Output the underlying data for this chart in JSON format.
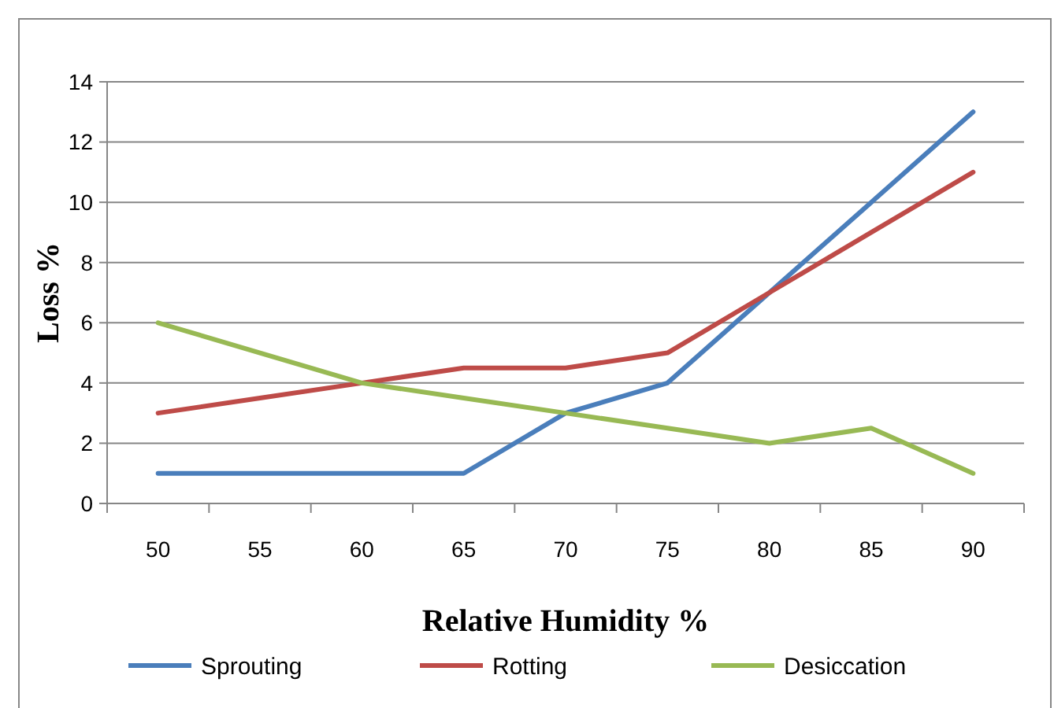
{
  "chart_data": {
    "type": "line",
    "xlabel": "Relative Humidity %",
    "ylabel": "Loss %",
    "categories": [
      "50",
      "55",
      "60",
      "65",
      "70",
      "75",
      "80",
      "85",
      "90"
    ],
    "series": [
      {
        "name": "Sprouting",
        "color": "#4a7ebb",
        "values": [
          1,
          1,
          1,
          1,
          3,
          4,
          7,
          10,
          13
        ]
      },
      {
        "name": "Rotting",
        "color": "#be4b48",
        "values": [
          3,
          3.5,
          4,
          4.5,
          4.5,
          5,
          7,
          9,
          11
        ]
      },
      {
        "name": "Desiccation",
        "color": "#98b954",
        "values": [
          6,
          5,
          4,
          3.5,
          3,
          2.5,
          2,
          2.5,
          1
        ]
      }
    ],
    "ylim": [
      0,
      14
    ],
    "yticks": [
      0,
      2,
      4,
      6,
      8,
      10,
      12,
      14
    ],
    "grid": "y",
    "legend": "bottom",
    "marker": "none",
    "line_style": "solid"
  }
}
